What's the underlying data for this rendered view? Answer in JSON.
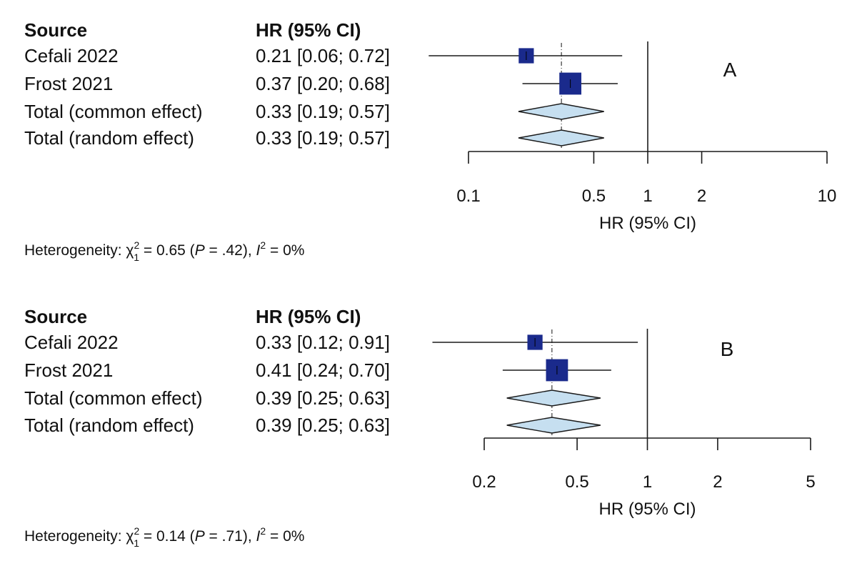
{
  "colors": {
    "study_square": "#1a2a8c",
    "diamond_fill": "#c6dff0",
    "diamond_stroke": "#1a1a1a",
    "line": "#1a1a1a"
  },
  "chart_data": [
    {
      "type": "forest",
      "panel_label": "A",
      "header": {
        "source": "Source",
        "estimate": "HR (95% CI)"
      },
      "xscale": "log",
      "xlim": [
        0.1,
        10
      ],
      "xticks": [
        0.1,
        0.5,
        1,
        2,
        10
      ],
      "xtick_labels": [
        "0.1",
        "0.5",
        "1",
        "2",
        "10"
      ],
      "xlabel": "HR (95% CI)",
      "reference_line": 1,
      "pooled_estimate": 0.33,
      "rows": [
        {
          "label": "Cefali 2022",
          "text": "0.21 [0.06; 0.72]",
          "kind": "study",
          "est": 0.21,
          "lo": 0.06,
          "hi": 0.72,
          "weight": 0.3
        },
        {
          "label": "Frost  2021",
          "text": "0.37 [0.20; 0.68]",
          "kind": "study",
          "est": 0.37,
          "lo": 0.2,
          "hi": 0.68,
          "weight": 0.7
        },
        {
          "label": "Total (common effect)",
          "text": "0.33 [0.19; 0.57]",
          "kind": "pooled",
          "est": 0.33,
          "lo": 0.19,
          "hi": 0.57
        },
        {
          "label": "Total (random effect)",
          "text": "0.33 [0.19; 0.57]",
          "kind": "pooled",
          "est": 0.33,
          "lo": 0.19,
          "hi": 0.57
        }
      ],
      "heterogeneity": {
        "prefix": "Heterogeneity: ",
        "chi": "χ",
        "chi_sup": "2",
        "chi_sub": "1",
        "chi_value": " = 0.65 (",
        "p_symbol": "P",
        "p_value": " = .42), ",
        "i_symbol": "I",
        "i_sup": "2",
        "i_value": " = 0%"
      }
    },
    {
      "type": "forest",
      "panel_label": "B",
      "header": {
        "source": "Source",
        "estimate": "HR (95% CI)"
      },
      "xscale": "log",
      "xlim": [
        0.2,
        5
      ],
      "xticks": [
        0.2,
        0.5,
        1,
        2,
        5
      ],
      "xtick_labels": [
        "0.2",
        "0.5",
        "1",
        "2",
        "5"
      ],
      "xlabel": "HR (95% CI)",
      "reference_line": 1,
      "pooled_estimate": 0.39,
      "rows": [
        {
          "label": "Cefali 2022",
          "text": "0.33 [0.12; 0.91]",
          "kind": "study",
          "est": 0.33,
          "lo": 0.12,
          "hi": 0.91,
          "weight": 0.3
        },
        {
          "label": "Frost  2021",
          "text": "0.41 [0.24; 0.70]",
          "kind": "study",
          "est": 0.41,
          "lo": 0.24,
          "hi": 0.7,
          "weight": 0.7
        },
        {
          "label": "Total (common effect)",
          "text": "0.39 [0.25; 0.63]",
          "kind": "pooled",
          "est": 0.39,
          "lo": 0.25,
          "hi": 0.63
        },
        {
          "label": "Total (random effect)",
          "text": "0.39 [0.25; 0.63]",
          "kind": "pooled",
          "est": 0.39,
          "lo": 0.25,
          "hi": 0.63
        }
      ],
      "heterogeneity": {
        "prefix": "Heterogeneity: ",
        "chi": "χ",
        "chi_sup": "2",
        "chi_sub": "1",
        "chi_value": " = 0.14 (",
        "p_symbol": "P",
        "p_value": " = .71), ",
        "i_symbol": "I",
        "i_sup": "2",
        "i_value": " = 0%"
      }
    }
  ]
}
